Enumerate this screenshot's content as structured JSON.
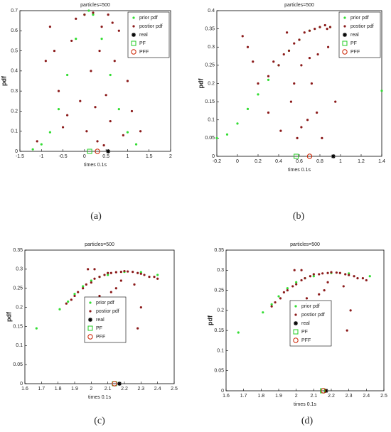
{
  "chart_data": [
    {
      "type": "scatter",
      "title": "particles=500",
      "xlabel": "times  0.1s",
      "ylabel": "pdf",
      "caption": "(a)",
      "xlim": [
        -1.5,
        2
      ],
      "xticks": [
        -1.5,
        -1,
        -0.5,
        0,
        0.5,
        1,
        1.5,
        2
      ],
      "ylim": [
        0,
        0.7
      ],
      "yticks": [
        0,
        0.1,
        0.2,
        0.3,
        0.4,
        0.5,
        0.6,
        0.7
      ],
      "legend": "upper right",
      "series": [
        {
          "name": "prior pdf",
          "color": "#33dd33",
          "marker": "dot",
          "x": [
            -1.2,
            -1.0,
            -0.8,
            -0.6,
            -0.4,
            -0.2,
            0,
            0.1,
            0.2,
            0.4,
            0.6,
            0.8,
            1.0,
            1.2
          ],
          "values": [
            0.01,
            0.035,
            0.095,
            0.21,
            0.38,
            0.56,
            0.68,
            0.7,
            0.68,
            0.56,
            0.38,
            0.21,
            0.095,
            0.035
          ]
        },
        {
          "name": "postior pdf",
          "color": "#8b1a1a",
          "marker": "dot",
          "x": [
            -1.1,
            -0.9,
            -0.8,
            -0.6,
            -0.5,
            -0.3,
            -0.2,
            -0.1,
            0,
            0.05,
            0.15,
            0.2,
            0.3,
            0.35,
            0.4,
            0.5,
            0.55,
            0.6,
            0.7,
            0.8,
            0.9,
            1.0,
            1.1,
            1.2,
            1.3,
            -0.7,
            0.25,
            0.45,
            -0.4,
            0.65
          ],
          "values": [
            0.05,
            0.45,
            0.62,
            0.3,
            0.12,
            0.55,
            0.66,
            0.25,
            0.68,
            0.1,
            0.4,
            0.69,
            0.05,
            0.5,
            0.62,
            0.28,
            0.68,
            0.15,
            0.45,
            0.6,
            0.08,
            0.35,
            0.2,
            0.55,
            0.1,
            0.5,
            0.22,
            0.03,
            0.18,
            0.64
          ]
        },
        {
          "name": "real",
          "color": "#000000",
          "marker": "star",
          "x": [
            0.55
          ],
          "values": [
            0
          ]
        },
        {
          "name": "PF",
          "color": "#22cc22",
          "marker": "square",
          "x": [
            0.12
          ],
          "values": [
            0
          ]
        },
        {
          "name": "PFF",
          "color": "#cc2200",
          "marker": "circle",
          "x": [
            0.3
          ],
          "values": [
            0
          ]
        }
      ]
    },
    {
      "type": "scatter",
      "title": "particles=500",
      "xlabel": "times  0.1s",
      "ylabel": "pdf",
      "caption": "(b)",
      "xlim": [
        -0.2,
        1.4
      ],
      "xticks": [
        -0.2,
        0,
        0.2,
        0.4,
        0.6,
        0.8,
        1,
        1.2,
        1.4
      ],
      "ylim": [
        0,
        0.4
      ],
      "yticks": [
        0,
        0.05,
        0.1,
        0.15,
        0.2,
        0.25,
        0.3,
        0.35,
        0.4
      ],
      "legend": "upper right",
      "series": [
        {
          "name": "prior pdf",
          "color": "#33dd33",
          "marker": "dot",
          "x": [
            -0.2,
            -0.1,
            0,
            0.1,
            0.2,
            0.3,
            0.4,
            0.5,
            0.6,
            0.7,
            0.8,
            0.9,
            1.4
          ],
          "values": [
            0.05,
            0.06,
            0.09,
            0.13,
            0.17,
            0.21,
            0.25,
            0.29,
            0.32,
            0.345,
            0.355,
            0.355,
            0.18
          ]
        },
        {
          "name": "postior pdf",
          "color": "#8b1a1a",
          "marker": "dot",
          "x": [
            0.1,
            0.2,
            0.3,
            0.35,
            0.4,
            0.45,
            0.5,
            0.52,
            0.55,
            0.58,
            0.6,
            0.62,
            0.65,
            0.68,
            0.7,
            0.72,
            0.75,
            0.78,
            0.8,
            0.82,
            0.85,
            0.88,
            0.9,
            0.95,
            1.0,
            0.3,
            0.42,
            0.48,
            0.55,
            0.62,
            0.7,
            0.77,
            0.87,
            0.05,
            0.15
          ],
          "values": [
            0.3,
            0.2,
            0.22,
            0.26,
            0.25,
            0.28,
            0.29,
            0.15,
            0.31,
            0.05,
            0.32,
            0.25,
            0.34,
            0.1,
            0.345,
            0.2,
            0.35,
            0.28,
            0.355,
            0.05,
            0.36,
            0.3,
            0.355,
            0.15,
            0.33,
            0.12,
            0.07,
            0.34,
            0.2,
            0.08,
            0.27,
            0.12,
            0.35,
            0.33,
            0.26
          ]
        },
        {
          "name": "real",
          "color": "#000000",
          "marker": "star",
          "x": [
            0.93
          ],
          "values": [
            0
          ]
        },
        {
          "name": "PF",
          "color": "#22cc22",
          "marker": "square",
          "x": [
            0.57
          ],
          "values": [
            0
          ]
        },
        {
          "name": "PFF",
          "color": "#cc2200",
          "marker": "circle",
          "x": [
            0.7
          ],
          "values": [
            0
          ]
        }
      ]
    },
    {
      "type": "scatter",
      "title": "particles=500",
      "xlabel": "times  0.1s",
      "ylabel": "pdf",
      "caption": "(c)",
      "xlim": [
        1.6,
        2.5
      ],
      "xticks": [
        1.6,
        1.7,
        1.8,
        1.9,
        2,
        2.1,
        2.2,
        2.3,
        2.4,
        2.5
      ],
      "ylim": [
        0,
        0.35
      ],
      "yticks": [
        0,
        0.05,
        0.1,
        0.15,
        0.2,
        0.25,
        0.3,
        0.35
      ],
      "legend": "center",
      "series": [
        {
          "name": "prior pdf",
          "color": "#33dd33",
          "marker": "dot",
          "x": [
            1.67,
            1.81,
            1.86,
            1.9,
            1.95,
            2.0,
            2.05,
            2.1,
            2.2,
            2.3,
            2.4
          ],
          "values": [
            0.145,
            0.195,
            0.215,
            0.235,
            0.255,
            0.27,
            0.28,
            0.285,
            0.293,
            0.292,
            0.285
          ]
        },
        {
          "name": "postior pdf",
          "color": "#8b1a1a",
          "marker": "dot",
          "x": [
            1.85,
            1.88,
            1.9,
            1.92,
            1.95,
            1.97,
            2.0,
            2.02,
            2.05,
            2.08,
            2.1,
            2.12,
            2.15,
            2.18,
            2.2,
            2.22,
            2.25,
            2.28,
            2.3,
            2.32,
            2.35,
            2.38,
            2.4,
            2.02,
            2.12,
            2.18,
            2.26,
            2.3,
            2.05,
            2.15,
            1.98,
            2.28
          ],
          "values": [
            0.21,
            0.22,
            0.23,
            0.24,
            0.25,
            0.26,
            0.265,
            0.275,
            0.28,
            0.285,
            0.29,
            0.29,
            0.292,
            0.293,
            0.295,
            0.294,
            0.293,
            0.29,
            0.288,
            0.285,
            0.28,
            0.28,
            0.275,
            0.3,
            0.24,
            0.27,
            0.26,
            0.2,
            0.23,
            0.25,
            0.3,
            0.145
          ]
        },
        {
          "name": "real",
          "color": "#000000",
          "marker": "star",
          "x": [
            2.17
          ],
          "values": [
            0
          ]
        },
        {
          "name": "PF",
          "color": "#22cc22",
          "marker": "square",
          "x": [
            2.14
          ],
          "values": [
            0
          ]
        },
        {
          "name": "PFF",
          "color": "#cc2200",
          "marker": "circle",
          "x": [
            2.14
          ],
          "values": [
            0
          ]
        }
      ]
    },
    {
      "type": "scatter",
      "title": "particles=500",
      "xlabel": "times  0.1s",
      "ylabel": "pdf",
      "caption": "(d)",
      "xlim": [
        1.6,
        2.5
      ],
      "xticks": [
        1.6,
        1.7,
        1.8,
        1.9,
        2,
        2.1,
        2.2,
        2.3,
        2.4,
        2.5
      ],
      "ylim": [
        0,
        0.35
      ],
      "yticks": [
        0,
        0.05,
        0.1,
        0.15,
        0.2,
        0.25,
        0.3,
        0.35
      ],
      "legend": "center",
      "series": [
        {
          "name": "prior pdf",
          "color": "#33dd33",
          "marker": "dot",
          "x": [
            1.67,
            1.81,
            1.86,
            1.9,
            1.95,
            2.0,
            2.05,
            2.1,
            2.2,
            2.3,
            2.42
          ],
          "values": [
            0.145,
            0.195,
            0.215,
            0.235,
            0.255,
            0.27,
            0.28,
            0.285,
            0.293,
            0.292,
            0.285
          ]
        },
        {
          "name": "postior pdf",
          "color": "#8b1a1a",
          "marker": "dot",
          "x": [
            1.86,
            1.88,
            1.91,
            1.93,
            1.95,
            1.98,
            2.0,
            2.03,
            2.05,
            2.08,
            2.1,
            2.13,
            2.15,
            2.18,
            2.2,
            2.23,
            2.25,
            2.28,
            2.3,
            2.33,
            2.35,
            2.38,
            2.4,
            2.03,
            2.13,
            2.18,
            2.27,
            2.31,
            2.06,
            2.16,
            1.99,
            2.29
          ],
          "values": [
            0.21,
            0.22,
            0.23,
            0.245,
            0.25,
            0.26,
            0.265,
            0.275,
            0.28,
            0.285,
            0.29,
            0.29,
            0.292,
            0.293,
            0.295,
            0.294,
            0.293,
            0.29,
            0.288,
            0.285,
            0.28,
            0.28,
            0.275,
            0.3,
            0.24,
            0.27,
            0.26,
            0.2,
            0.23,
            0.25,
            0.3,
            0.15
          ]
        },
        {
          "name": "real",
          "color": "#000000",
          "marker": "star",
          "x": [
            2.17
          ],
          "values": [
            0
          ]
        },
        {
          "name": "PF",
          "color": "#22cc22",
          "marker": "square",
          "x": [
            2.15
          ],
          "values": [
            0
          ]
        },
        {
          "name": "PFF",
          "color": "#cc2200",
          "marker": "circle",
          "x": [
            2.155
          ],
          "values": [
            0
          ]
        }
      ]
    }
  ]
}
